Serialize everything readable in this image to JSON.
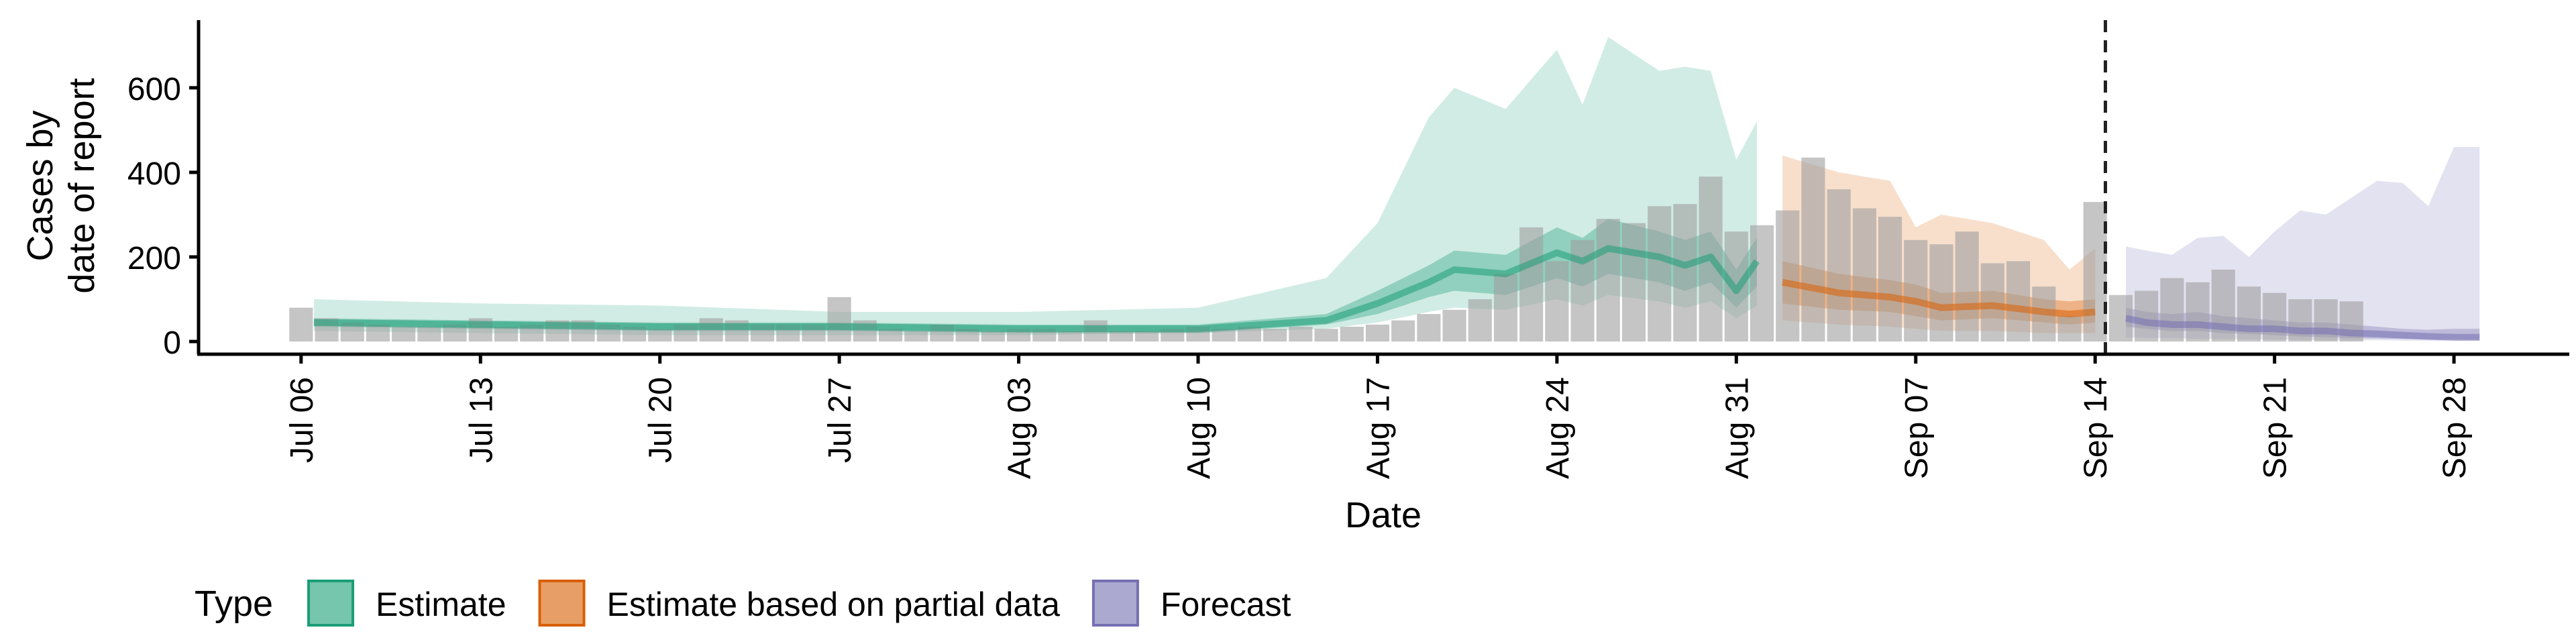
{
  "chart_data": {
    "type": "area",
    "xlabel": "Date",
    "ylabel_lines": [
      "Cases by",
      "date of report"
    ],
    "y_ticks": [
      0,
      200,
      400,
      600
    ],
    "ylim": [
      -30,
      760
    ],
    "x_ticks": [
      {
        "day": 0,
        "label": "Jul 06"
      },
      {
        "day": 7,
        "label": "Jul 13"
      },
      {
        "day": 14,
        "label": "Jul 20"
      },
      {
        "day": 21,
        "label": "Jul 27"
      },
      {
        "day": 28,
        "label": "Aug 03"
      },
      {
        "day": 35,
        "label": "Aug 10"
      },
      {
        "day": 42,
        "label": "Aug 17"
      },
      {
        "day": 49,
        "label": "Aug 24"
      },
      {
        "day": 56,
        "label": "Aug 31"
      },
      {
        "day": 63,
        "label": "Sep 07"
      },
      {
        "day": 70,
        "label": "Sep 14"
      },
      {
        "day": 77,
        "label": "Sep 21"
      },
      {
        "day": 84,
        "label": "Sep 28"
      }
    ],
    "xlim_days": [
      -4,
      88.5
    ],
    "forecast_line_day": 70.4,
    "colors": {
      "Estimate": "#1b9e77",
      "Estimate based on partial data": "#d95f02",
      "Forecast": "#7570b3",
      "bars": "#9e9e9e"
    },
    "legend": {
      "title": "Type",
      "items": [
        "Estimate",
        "Estimate based on partial data",
        "Forecast"
      ]
    },
    "reported_cases": {
      "start_day": 0,
      "values": [
        80,
        55,
        45,
        40,
        35,
        35,
        40,
        55,
        35,
        40,
        50,
        50,
        40,
        35,
        30,
        40,
        55,
        50,
        40,
        40,
        40,
        105,
        50,
        30,
        25,
        40,
        30,
        25,
        30,
        30,
        25,
        50,
        25,
        25,
        30,
        35,
        30,
        35,
        30,
        35,
        30,
        35,
        40,
        50,
        65,
        75,
        100,
        160,
        270,
        190,
        240,
        290,
        280,
        320,
        325,
        390,
        260,
        275,
        310,
        435,
        360,
        315,
        295,
        240,
        230,
        260,
        185,
        190,
        130,
        60,
        330,
        110,
        120,
        150,
        140,
        170,
        130,
        115,
        100,
        100,
        95
      ]
    },
    "series": [
      {
        "name": "Estimate",
        "start_day": 0.5,
        "days": [
          0.5,
          7,
          14,
          21,
          28,
          35,
          40,
          42,
          44,
          45,
          47,
          49,
          50,
          51,
          53,
          54,
          55,
          56,
          56.8
        ],
        "median": [
          45,
          40,
          35,
          35,
          30,
          30,
          50,
          90,
          140,
          170,
          160,
          210,
          190,
          220,
          200,
          180,
          200,
          120,
          190
        ],
        "inner": [
          [
            35,
            55
          ],
          [
            30,
            50
          ],
          [
            25,
            45
          ],
          [
            25,
            45
          ],
          [
            20,
            40
          ],
          [
            20,
            40
          ],
          [
            40,
            65
          ],
          [
            65,
            120
          ],
          [
            105,
            180
          ],
          [
            120,
            215
          ],
          [
            110,
            205
          ],
          [
            150,
            270
          ],
          [
            130,
            245
          ],
          [
            160,
            290
          ],
          [
            140,
            260
          ],
          [
            120,
            240
          ],
          [
            140,
            260
          ],
          [
            80,
            170
          ],
          [
            130,
            245
          ]
        ],
        "outer": [
          [
            25,
            100
          ],
          [
            20,
            90
          ],
          [
            15,
            85
          ],
          [
            15,
            70
          ],
          [
            15,
            70
          ],
          [
            20,
            80
          ],
          [
            30,
            150
          ],
          [
            45,
            280
          ],
          [
            70,
            530
          ],
          [
            80,
            600
          ],
          [
            75,
            550
          ],
          [
            100,
            690
          ],
          [
            85,
            560
          ],
          [
            110,
            720
          ],
          [
            95,
            640
          ],
          [
            80,
            650
          ],
          [
            95,
            640
          ],
          [
            55,
            430
          ],
          [
            85,
            520
          ]
        ]
      },
      {
        "name": "Estimate based on partial data",
        "days": [
          57.8,
          60,
          62,
          63,
          64,
          66,
          68,
          69,
          70
        ],
        "median": [
          140,
          115,
          105,
          95,
          80,
          85,
          70,
          65,
          70
        ],
        "inner": [
          [
            90,
            190
          ],
          [
            75,
            160
          ],
          [
            70,
            145
          ],
          [
            60,
            135
          ],
          [
            50,
            115
          ],
          [
            55,
            120
          ],
          [
            45,
            100
          ],
          [
            40,
            95
          ],
          [
            45,
            100
          ]
        ],
        "outer": [
          [
            50,
            440
          ],
          [
            40,
            400
          ],
          [
            35,
            380
          ],
          [
            30,
            270
          ],
          [
            25,
            300
          ],
          [
            25,
            280
          ],
          [
            20,
            240
          ],
          [
            20,
            170
          ],
          [
            20,
            220
          ]
        ]
      },
      {
        "name": "Forecast",
        "days": [
          71.2,
          72,
          73,
          74,
          75,
          76,
          77,
          78,
          79,
          80,
          81,
          82,
          83,
          84,
          85
        ],
        "median": [
          55,
          45,
          40,
          40,
          35,
          30,
          30,
          25,
          25,
          20,
          18,
          15,
          12,
          10,
          10
        ],
        "inner": [
          [
            35,
            80
          ],
          [
            30,
            70
          ],
          [
            25,
            65
          ],
          [
            25,
            70
          ],
          [
            20,
            60
          ],
          [
            18,
            55
          ],
          [
            15,
            50
          ],
          [
            12,
            45
          ],
          [
            10,
            45
          ],
          [
            8,
            40
          ],
          [
            7,
            35
          ],
          [
            6,
            30
          ],
          [
            5,
            28
          ],
          [
            5,
            30
          ],
          [
            4,
            30
          ]
        ],
        "outer": [
          [
            10,
            225
          ],
          [
            8,
            215
          ],
          [
            8,
            205
          ],
          [
            6,
            245
          ],
          [
            6,
            250
          ],
          [
            5,
            200
          ],
          [
            5,
            260
          ],
          [
            4,
            310
          ],
          [
            3,
            300
          ],
          [
            3,
            340
          ],
          [
            3,
            380
          ],
          [
            2,
            375
          ],
          [
            2,
            320
          ],
          [
            2,
            460
          ],
          [
            2,
            460
          ]
        ]
      }
    ]
  }
}
